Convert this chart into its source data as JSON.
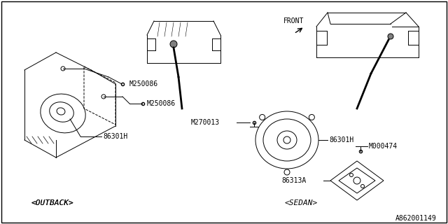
{
  "title": "",
  "bg_color": "#ffffff",
  "border_color": "#000000",
  "line_color": "#000000",
  "labels": {
    "outback": "<OUTBACK>",
    "sedan": "<SEDAN>",
    "part1": "86301H",
    "part2": "M250086",
    "part3": "M250086",
    "part4": "M270013",
    "part5": "86301H",
    "part6": "86313A",
    "part7": "M000474",
    "front": "FRONT",
    "catalog": "A862001149"
  },
  "label_fontsize": 7,
  "section_fontsize": 8,
  "catalog_fontsize": 7
}
